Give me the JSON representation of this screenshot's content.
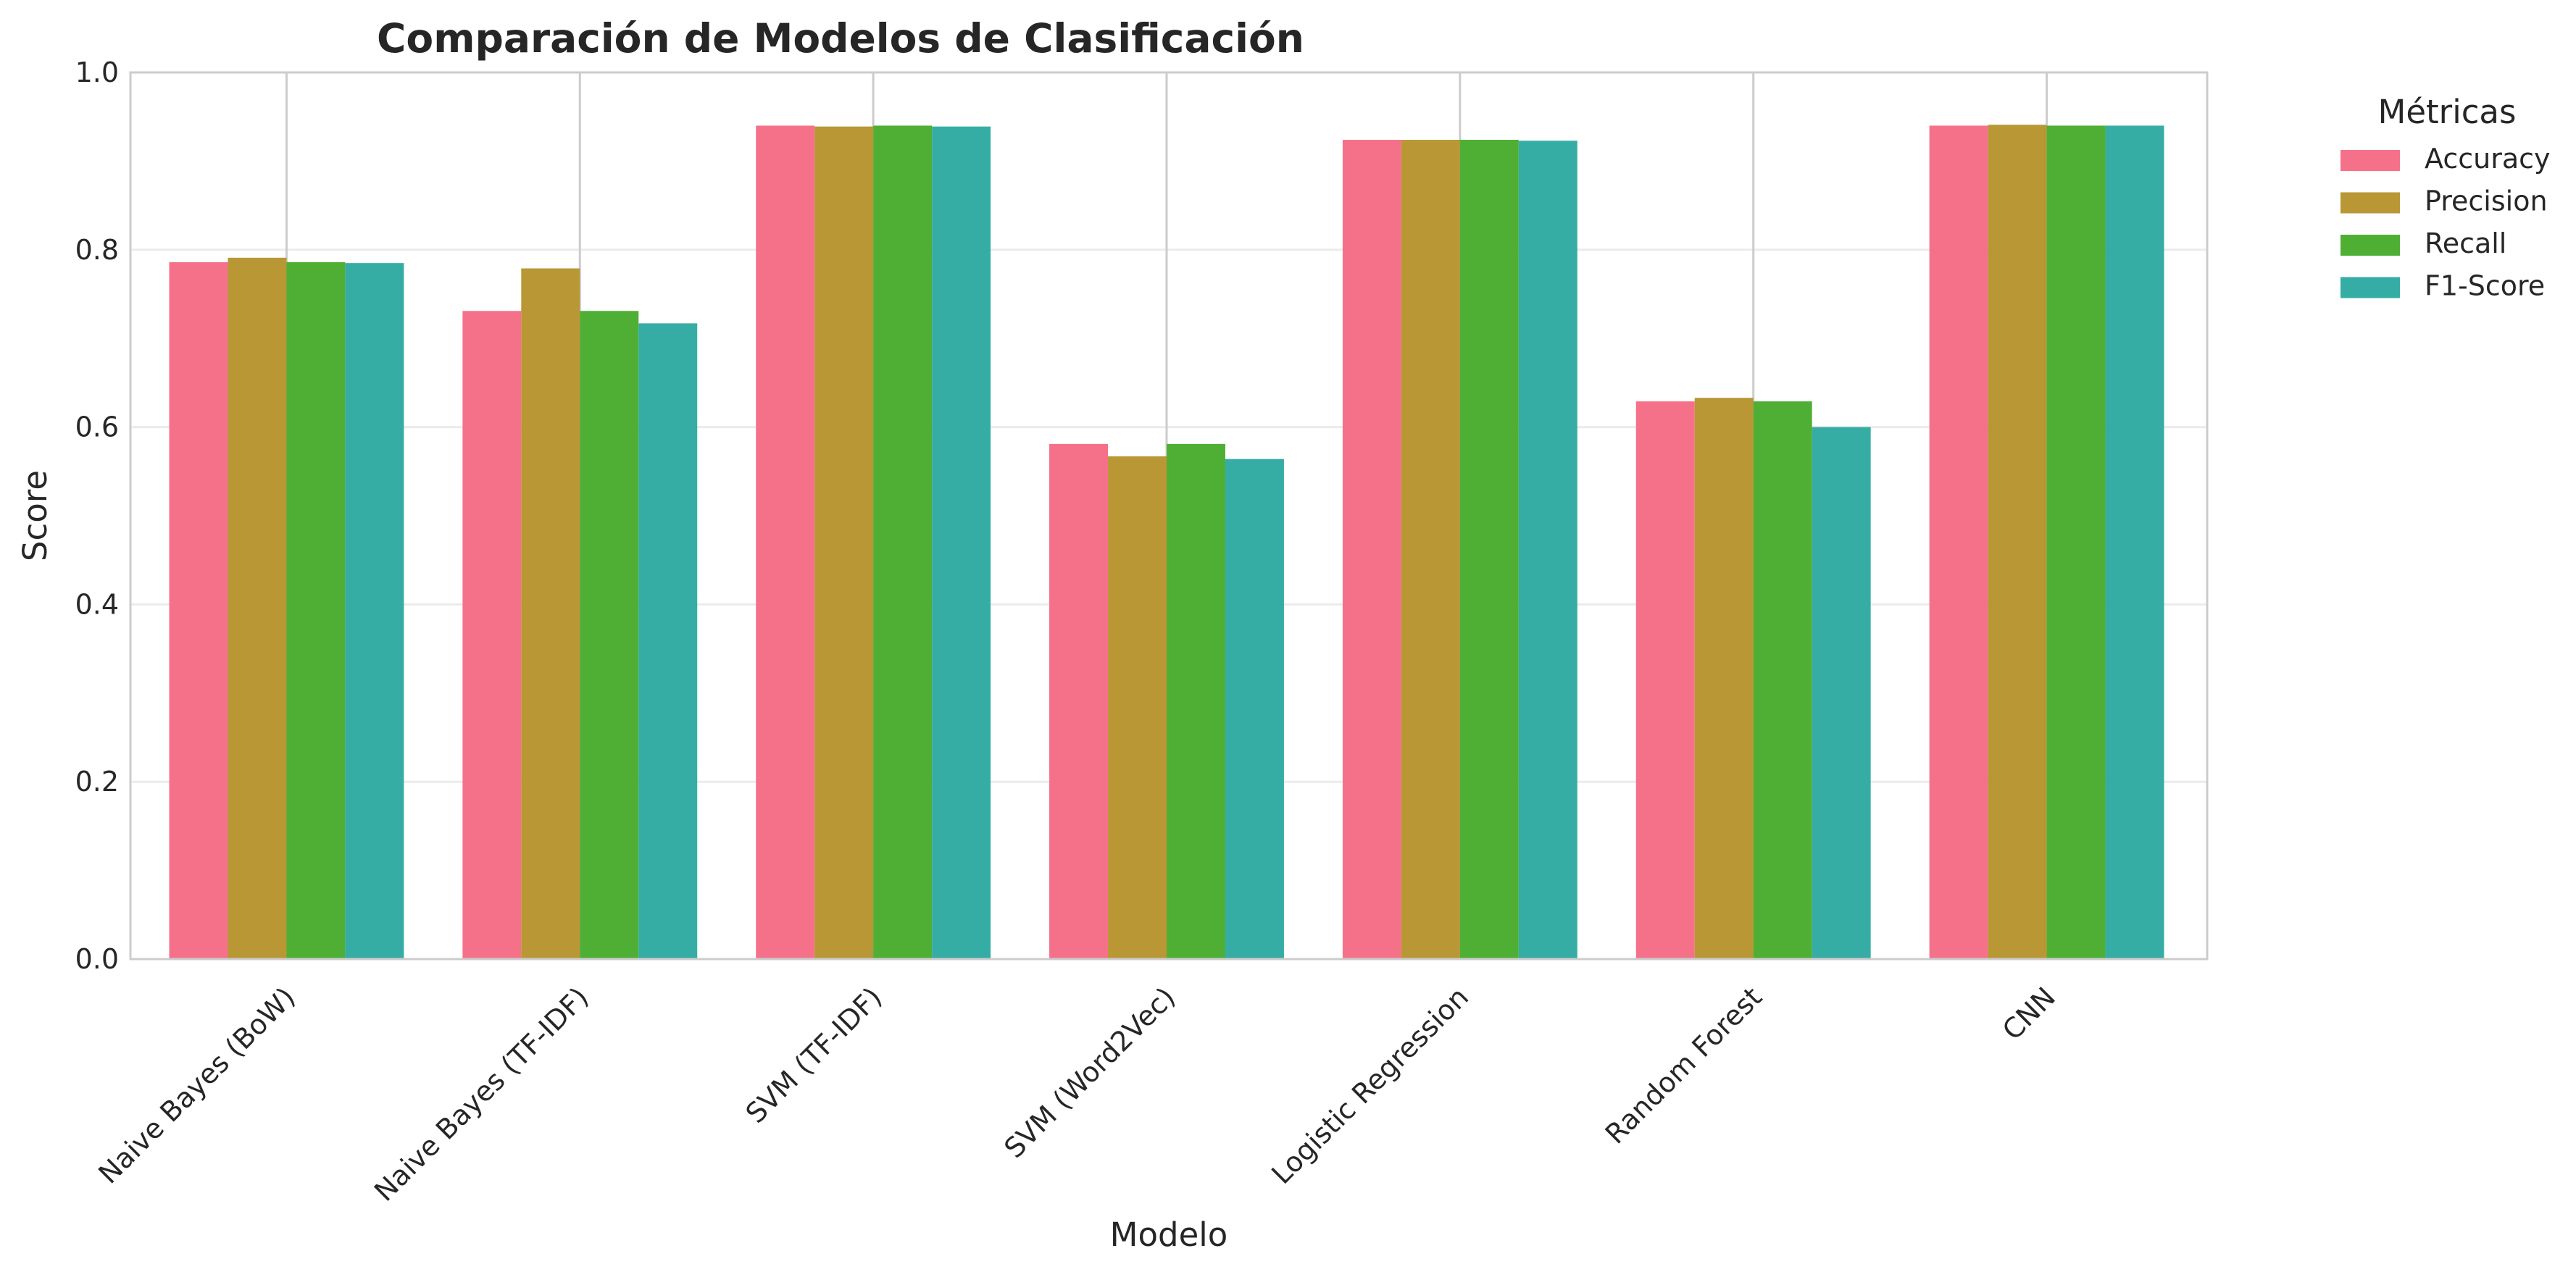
{
  "chart_data": {
    "type": "bar",
    "title": "Comparación de Modelos de Clasificación",
    "xlabel": "Modelo",
    "ylabel": "Score",
    "ylim": [
      0,
      1.0
    ],
    "yticks": [
      "0.0",
      "0.2",
      "0.4",
      "0.6",
      "0.8",
      "1.0"
    ],
    "categories": [
      "Naive Bayes (BoW)",
      "Naive Bayes (TF-IDF)",
      "SVM (TF-IDF)",
      "SVM (Word2Vec)",
      "Logistic Regression",
      "Random Forest",
      "CNN"
    ],
    "series": [
      {
        "name": "Accuracy",
        "color": "#f5718a",
        "values": [
          0.786,
          0.731,
          0.94,
          0.581,
          0.924,
          0.629,
          0.94
        ]
      },
      {
        "name": "Precision",
        "color": "#b89734",
        "values": [
          0.791,
          0.779,
          0.939,
          0.567,
          0.924,
          0.633,
          0.941
        ]
      },
      {
        "name": "Recall",
        "color": "#4eaf34",
        "values": [
          0.786,
          0.731,
          0.94,
          0.581,
          0.924,
          0.629,
          0.94
        ]
      },
      {
        "name": "F1-Score",
        "color": "#36ada4",
        "values": [
          0.785,
          0.717,
          0.939,
          0.564,
          0.923,
          0.6,
          0.94
        ]
      }
    ],
    "grid": true,
    "legend": {
      "title": "Métricas",
      "placement": "outside-top-right"
    }
  }
}
